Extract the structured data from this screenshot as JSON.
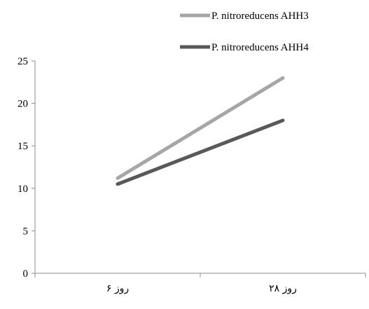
{
  "chart_data": {
    "type": "line",
    "categories": [
      "روز ۶",
      "روز ۲۸"
    ],
    "series": [
      {
        "name": "P. nitroreducens AHH3",
        "values": [
          11.2,
          23
        ],
        "color": "#a6a6a6"
      },
      {
        "name": "P. nitroreducens AHH4",
        "values": [
          10.5,
          18
        ],
        "color": "#595959"
      }
    ],
    "ylim": [
      0,
      25
    ],
    "yticks": [
      0,
      5,
      10,
      15,
      20,
      25
    ],
    "xlabel": "",
    "ylabel": "",
    "grid": false,
    "legend_position": "top-right"
  }
}
